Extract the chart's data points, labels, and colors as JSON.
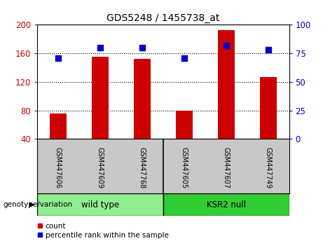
{
  "title": "GDS5248 / 1455738_at",
  "samples": [
    "GSM447606",
    "GSM447609",
    "GSM447768",
    "GSM447605",
    "GSM447607",
    "GSM447749"
  ],
  "counts": [
    76,
    155,
    152,
    80,
    193,
    127
  ],
  "percentile_ranks": [
    71,
    80,
    80,
    71,
    82,
    78
  ],
  "bar_color": "#CC0000",
  "dot_color": "#0000CC",
  "ylim_left": [
    40,
    200
  ],
  "ylim_right": [
    0,
    100
  ],
  "yticks_left": [
    40,
    80,
    120,
    160,
    200
  ],
  "yticks_right": [
    0,
    25,
    50,
    75,
    100
  ],
  "left_tick_color": "#CC0000",
  "right_tick_color": "#0000CC",
  "xlabel_area_color": "#c8c8c8",
  "wt_color": "#90EE90",
  "ksr_color": "#32CD32",
  "background_color": "#ffffff",
  "legend_count_label": "count",
  "legend_pct_label": "percentile rank within the sample",
  "genotype_label": "genotype/variation",
  "wt_label": "wild type",
  "ksr_label": "KSR2 null",
  "wt_group_size": 3,
  "ksr_group_size": 3,
  "bar_width": 0.4,
  "dot_size": 30
}
